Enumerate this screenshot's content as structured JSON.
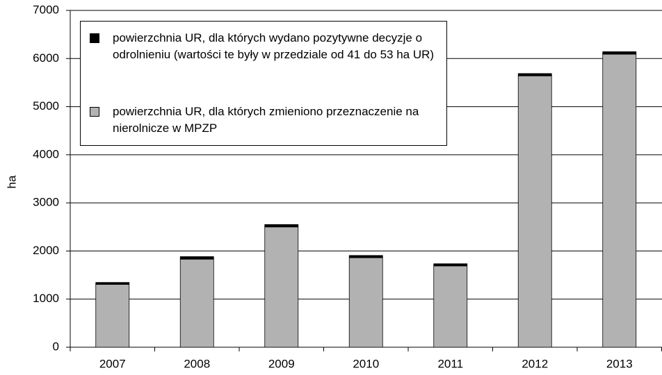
{
  "chart_data": {
    "type": "stacked_bar",
    "y_label": "ha",
    "categories": [
      "2007",
      "2008",
      "2009",
      "2010",
      "2011",
      "2012",
      "2013"
    ],
    "series": [
      {
        "name": "powierzchnia UR, dla których wydano pozytywne decyzje o odrolnieniu (wartości te były w przedziale od 41 do 53 ha UR)",
        "color": "#000000",
        "values": [
          41,
          53,
          50,
          47,
          45,
          48,
          52
        ]
      },
      {
        "name": "powierzchnia UR, dla których zmieniono przeznaczenie na nierolnicze w MPZP",
        "color": "#b2b2b2",
        "values": [
          1305,
          1830,
          2500,
          1860,
          1690,
          5640,
          6090
        ]
      }
    ],
    "stack_order": "last_series_at_bottom",
    "ylim": [
      0,
      7000
    ],
    "yticks": [
      0,
      1000,
      2000,
      3000,
      4000,
      5000,
      6000,
      7000
    ],
    "grid": true,
    "legend": "upper-left"
  }
}
